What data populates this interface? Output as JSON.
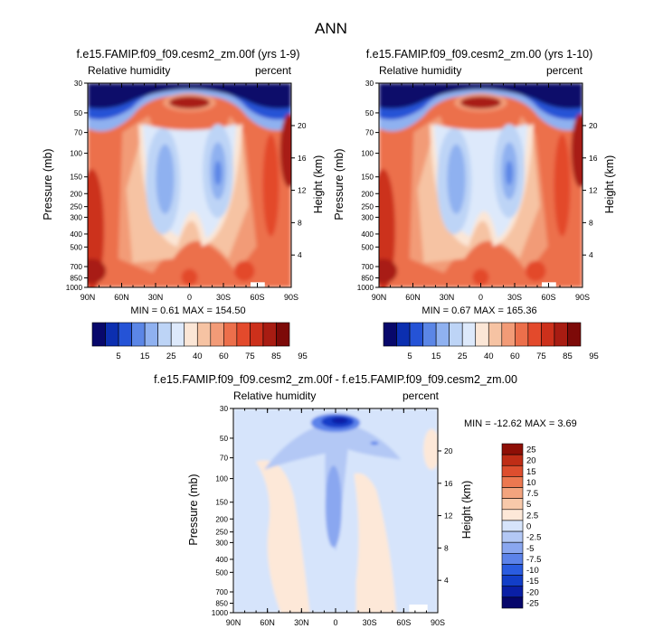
{
  "title": "ANN",
  "colors": {
    "full": [
      "#08086b",
      "#0c2fb0",
      "#2553d6",
      "#5b86e6",
      "#8fb1f0",
      "#bdd4f6",
      "#dde9fb",
      "#fbe6d6",
      "#f6c3a3",
      "#f29b77",
      "#ec6f4b",
      "#e34a2c",
      "#cc301b",
      "#a81c12",
      "#7d0a08"
    ],
    "diff": [
      "#06066b",
      "#0a1fa6",
      "#123ec8",
      "#2a5ce0",
      "#5c83ea",
      "#8aa7f0",
      "#b3c8f5",
      "#d6e4fb",
      "#fde8d8",
      "#f8c9aa",
      "#f3a47e",
      "#ec7850",
      "#dd4e2e",
      "#bf2d16",
      "#8e0f06"
    ]
  },
  "chart_data": [
    {
      "type": "heatmap",
      "panel": "test",
      "title": "f.e15.FAMIP.f09_f09.cesm2_zm.00f (yrs 1-9)",
      "left_label": "Relative humidity",
      "right_label": "percent",
      "ylabel": "Pressure (mb)",
      "y2label": "Height (km)",
      "x_ticks": [
        "90N",
        "60N",
        "30N",
        "0",
        "30S",
        "60S",
        "90S"
      ],
      "y_ticks": [
        "30",
        "50",
        "70",
        "100",
        "150",
        "200",
        "250",
        "300",
        "400",
        "500",
        "700",
        "850",
        "1000"
      ],
      "y2_ticks": [
        "20",
        "16",
        "12",
        "8",
        "4"
      ],
      "min": 0.61,
      "max": 154.5,
      "stats_text": "MIN =  0.61   MAX = 154.50",
      "colorbar_labels": [
        "5",
        "15",
        "25",
        "40",
        "60",
        "75",
        "85",
        "95"
      ]
    },
    {
      "type": "heatmap",
      "panel": "control",
      "title": "f.e15.FAMIP.f09_f09.cesm2_zm.00 (yrs 1-10)",
      "left_label": "Relative humidity",
      "right_label": "percent",
      "ylabel": "Pressure (mb)",
      "y2label": "Height (km)",
      "x_ticks": [
        "90N",
        "60N",
        "30N",
        "0",
        "30S",
        "60S",
        "90S"
      ],
      "y_ticks": [
        "30",
        "50",
        "70",
        "100",
        "150",
        "200",
        "250",
        "300",
        "400",
        "500",
        "700",
        "850",
        "1000"
      ],
      "y2_ticks": [
        "20",
        "16",
        "12",
        "8",
        "4"
      ],
      "min": 0.67,
      "max": 165.36,
      "stats_text": "MIN =  0.67   MAX = 165.36",
      "colorbar_labels": [
        "5",
        "15",
        "25",
        "40",
        "60",
        "75",
        "85",
        "95"
      ]
    },
    {
      "type": "heatmap",
      "panel": "difference",
      "title": "f.e15.FAMIP.f09_f09.cesm2_zm.00f - f.e15.FAMIP.f09_f09.cesm2_zm.00",
      "left_label": "Relative humidity",
      "right_label": "percent",
      "ylabel": "Pressure (mb)",
      "y2label": "Height (km)",
      "x_ticks": [
        "90N",
        "60N",
        "30N",
        "0",
        "30S",
        "60S",
        "90S"
      ],
      "y_ticks": [
        "30",
        "50",
        "70",
        "100",
        "150",
        "200",
        "250",
        "300",
        "400",
        "500",
        "700",
        "850",
        "1000"
      ],
      "y2_ticks": [
        "20",
        "16",
        "12",
        "8",
        "4"
      ],
      "min": -12.62,
      "max": 3.69,
      "stats_text": "MIN = -12.62  MAX =   3.69",
      "colorbar_labels": [
        "25",
        "20",
        "15",
        "10",
        "7.5",
        "5",
        "2.5",
        "0",
        "-2.5",
        "-5",
        "-7.5",
        "-10",
        "-15",
        "-20",
        "-25"
      ]
    }
  ]
}
